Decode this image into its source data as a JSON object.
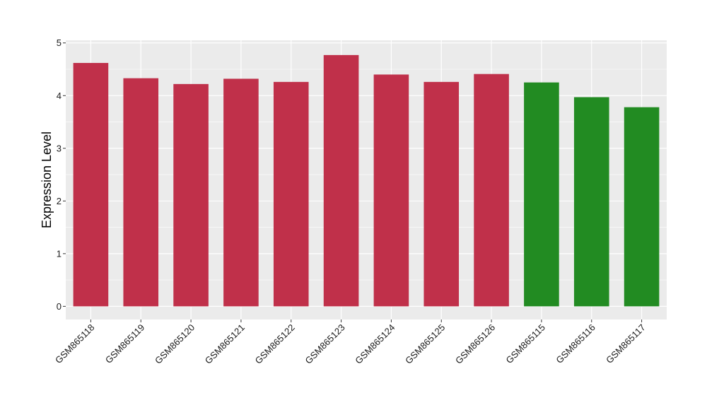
{
  "chart_data": {
    "type": "bar",
    "title": "",
    "xlabel": "",
    "ylabel": "Expression Level",
    "ylim": [
      -0.25,
      5.05
    ],
    "yticks": [
      0,
      1,
      2,
      3,
      4,
      5
    ],
    "grid": true,
    "legend": "none",
    "categories": [
      "GSM865118",
      "GSM865119",
      "GSM865120",
      "GSM865121",
      "GSM865122",
      "GSM865123",
      "GSM865124",
      "GSM865125",
      "GSM865126",
      "GSM865115",
      "GSM865116",
      "GSM865117"
    ],
    "values": [
      4.62,
      4.33,
      4.22,
      4.32,
      4.26,
      4.77,
      4.4,
      4.26,
      4.41,
      4.25,
      3.97,
      3.78
    ],
    "bar_colors": [
      "#c0304a",
      "#c0304a",
      "#c0304a",
      "#c0304a",
      "#c0304a",
      "#c0304a",
      "#c0304a",
      "#c0304a",
      "#c0304a",
      "#228b22",
      "#228b22",
      "#228b22"
    ],
    "panel_background": "#ebebeb",
    "gridline_color": "#ffffff"
  }
}
